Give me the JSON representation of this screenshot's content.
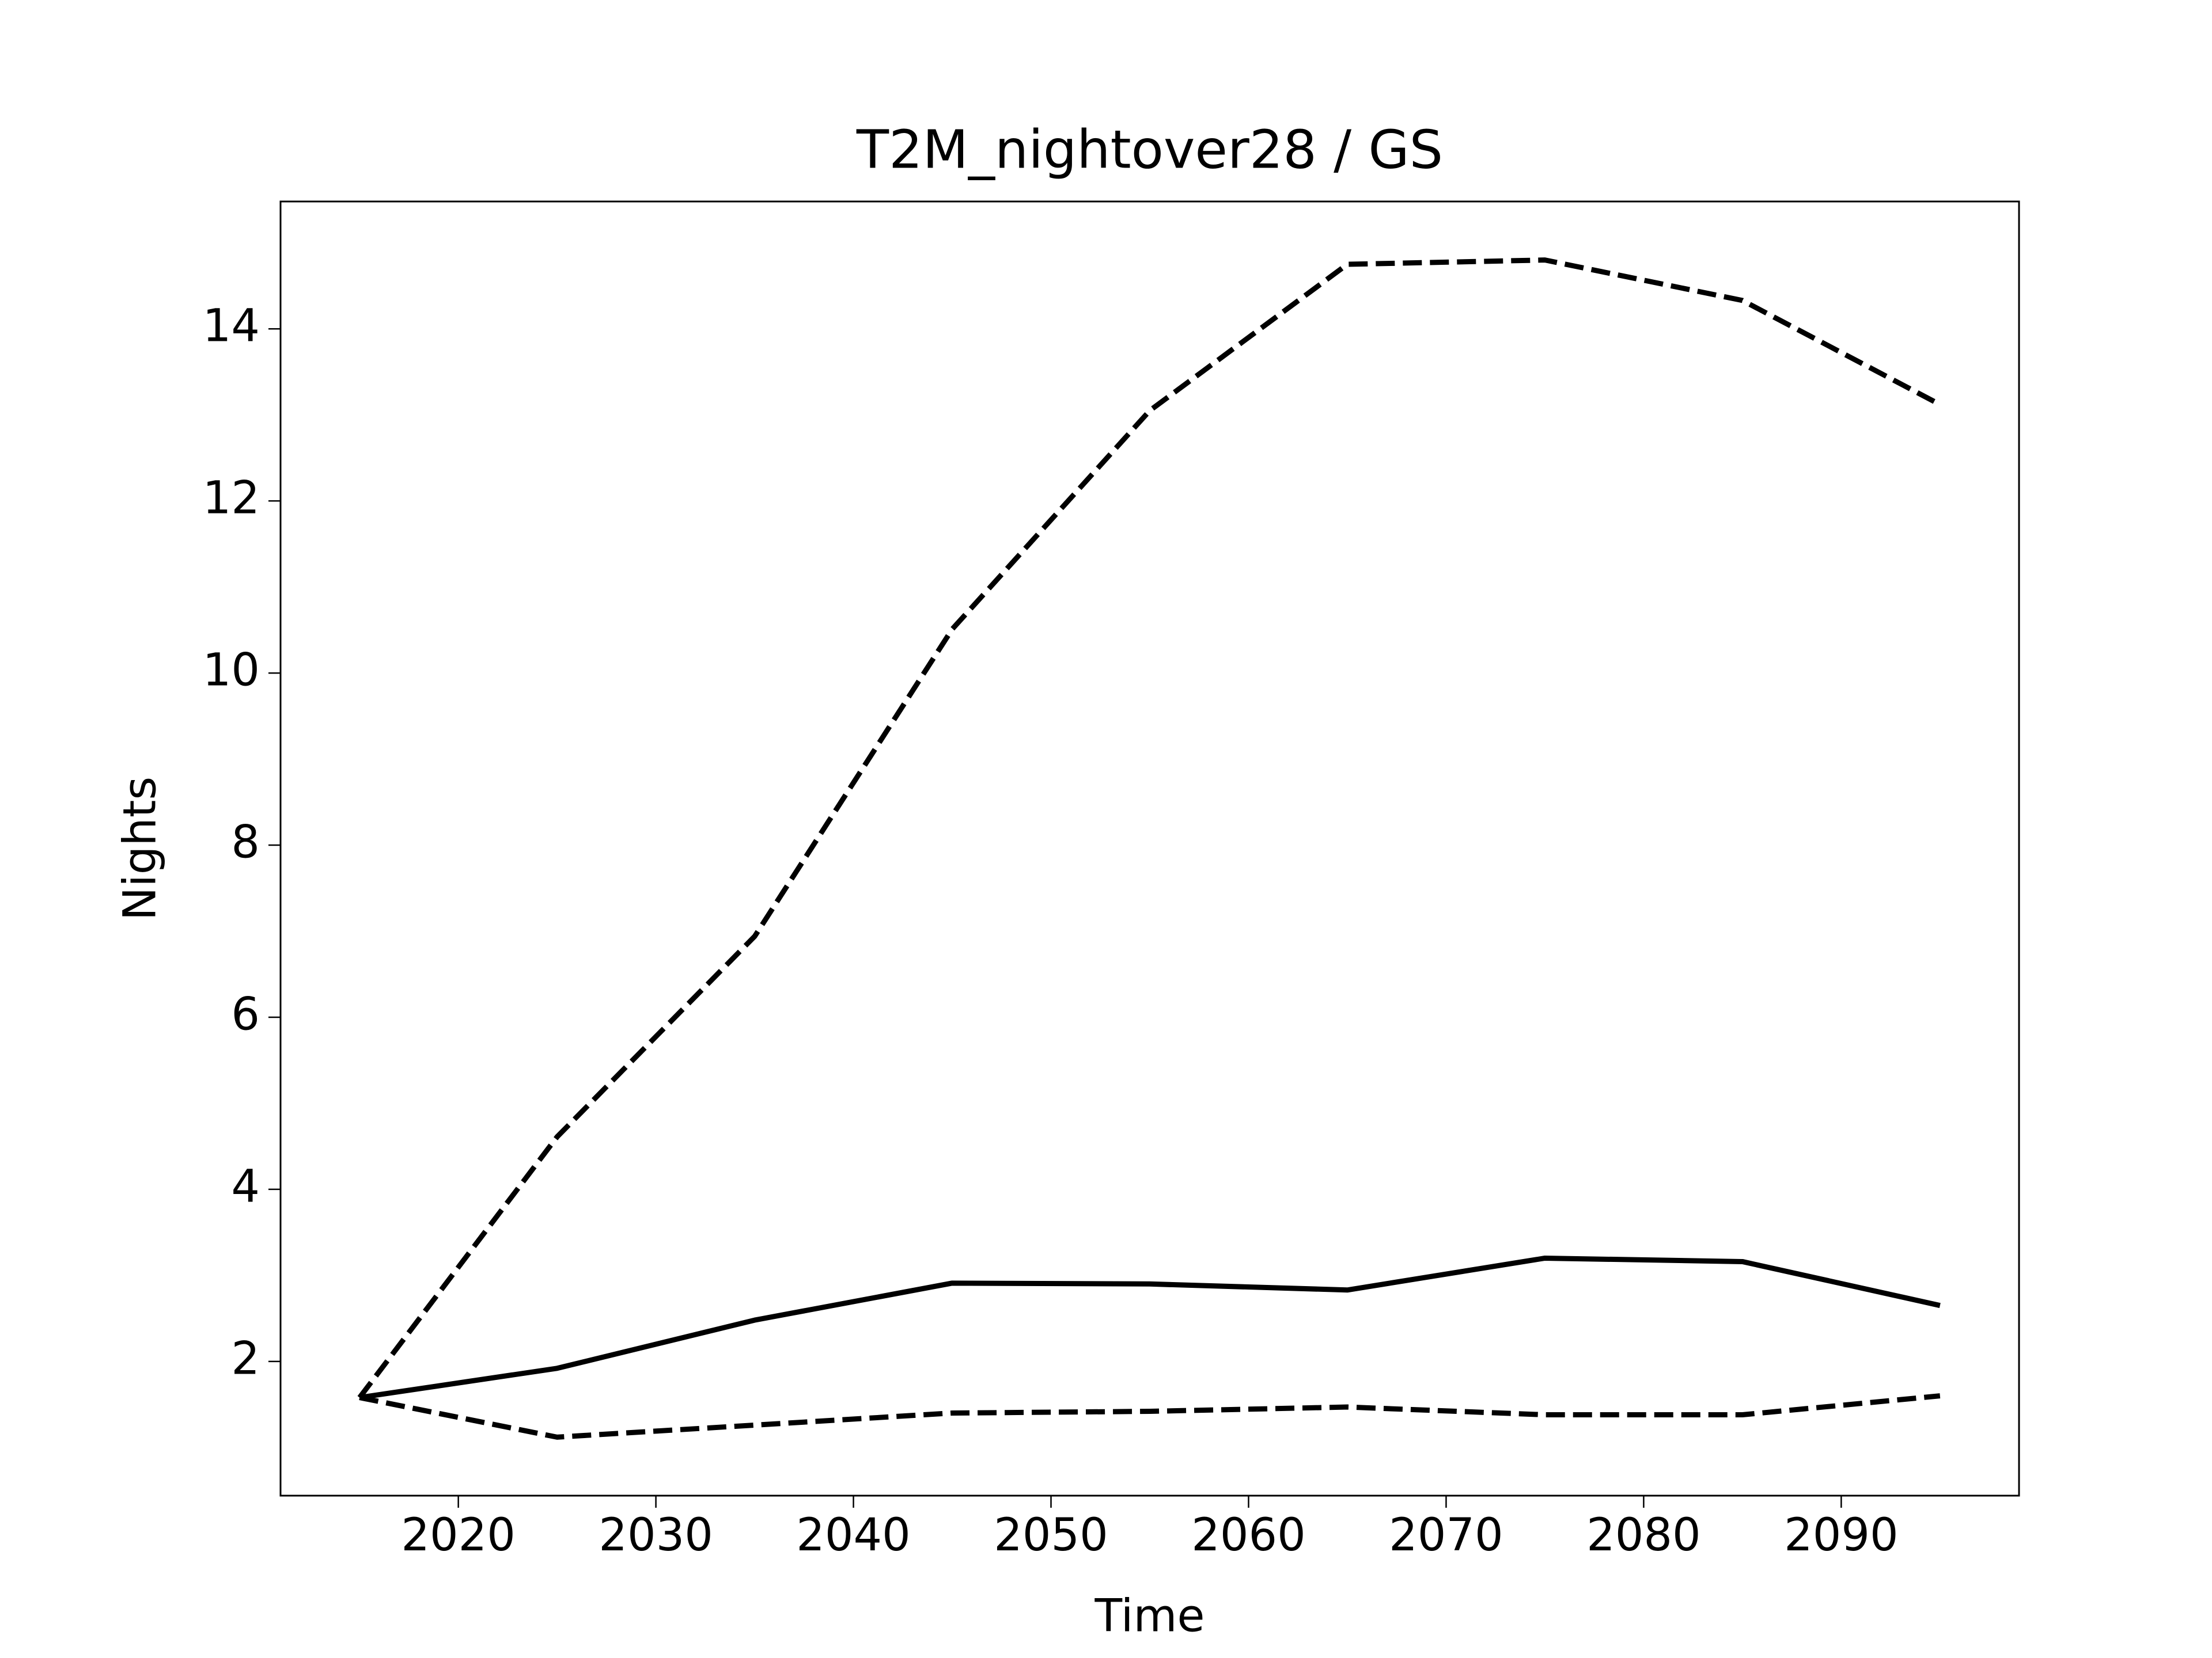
{
  "chart_data": {
    "type": "line",
    "title": "T2M_nightover28 / GS",
    "x_label": "Time",
    "y_label": "Nights",
    "x": [
      2015,
      2025,
      2035,
      2045,
      2055,
      2065,
      2075,
      2085,
      2095
    ],
    "series": [
      {
        "color": "#000000",
        "linestyle": "solid",
        "values": [
          1.58,
          1.92,
          2.48,
          2.91,
          2.9,
          2.83,
          3.2,
          3.16,
          2.65
        ]
      },
      {
        "color": "#000000",
        "linestyle": "dashed",
        "values": [
          1.58,
          4.61,
          6.94,
          10.51,
          13.05,
          14.75,
          14.8,
          14.33,
          13.12
        ]
      },
      {
        "color": "#000000",
        "linestyle": "dashed",
        "values": [
          1.58,
          1.12,
          1.26,
          1.4,
          1.42,
          1.47,
          1.38,
          1.38,
          1.6
        ]
      }
    ],
    "xlim": [
      2011,
      2099
    ],
    "xticks": [
      2020,
      2030,
      2040,
      2050,
      2060,
      2070,
      2080,
      2090
    ],
    "ylim": [
      0.44,
      15.48
    ],
    "yticks": [
      2,
      4,
      6,
      8,
      10,
      12,
      14
    ]
  }
}
